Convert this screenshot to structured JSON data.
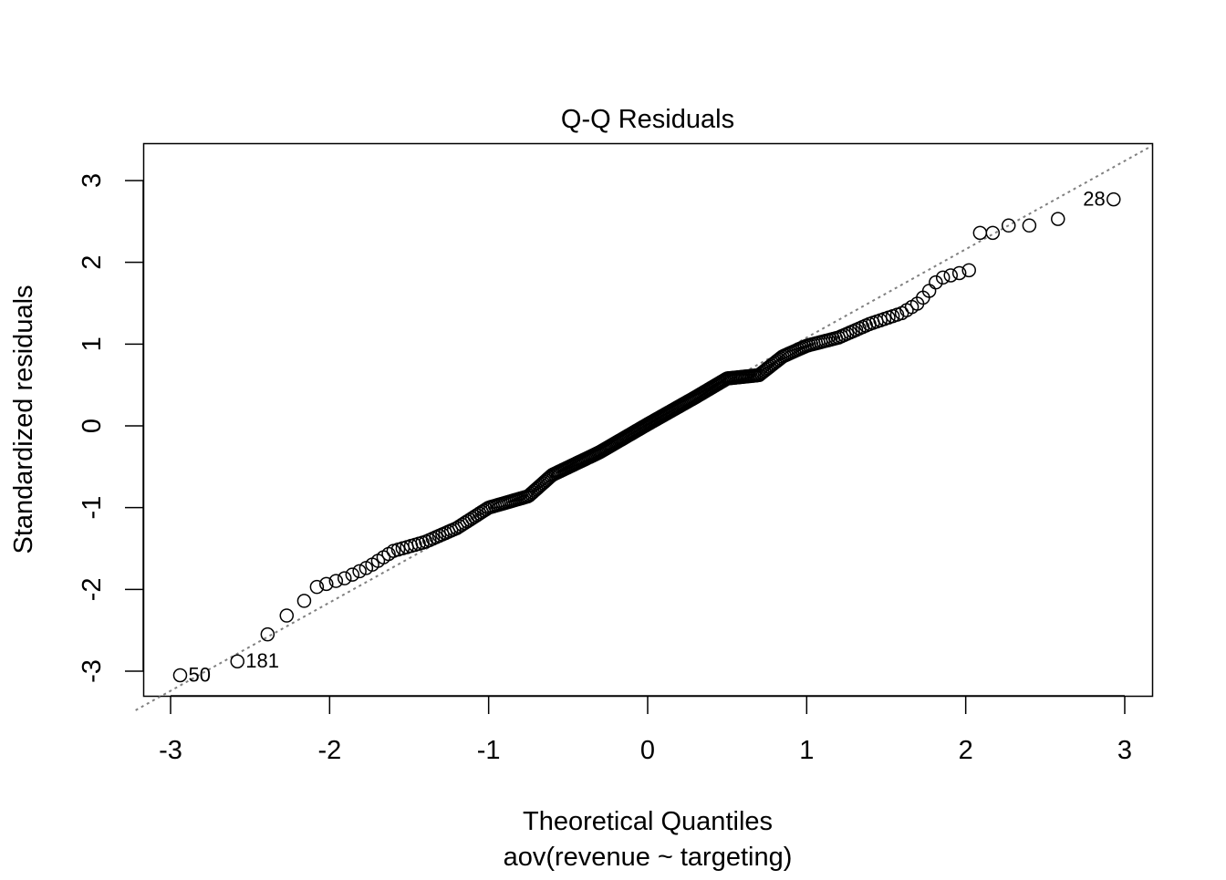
{
  "chart_data": {
    "type": "scatter",
    "title": "Q-Q Residuals",
    "xlabel": "Theoretical Quantiles",
    "xsublabel": "aov(revenue ~ targeting)",
    "ylabel": "Standardized residuals",
    "xlim": [
      -3.17,
      3.17
    ],
    "ylim": [
      -3.3,
      3.46
    ],
    "xticks": [
      -3,
      -2,
      -1,
      0,
      1,
      2,
      3
    ],
    "xtick_labels": [
      "-3",
      "-2",
      "-1",
      "0",
      "1",
      "2",
      "3"
    ],
    "yticks": [
      -3,
      -2,
      -1,
      0,
      1,
      2,
      3
    ],
    "ytick_labels": [
      "-3",
      "-2",
      "-1",
      "0",
      "1",
      "2",
      "3"
    ],
    "n": 300,
    "residual_curve": [
      [
        -2.94,
        -3.05
      ],
      [
        -2.58,
        -2.88
      ],
      [
        -2.39,
        -2.55
      ],
      [
        -2.27,
        -2.32
      ],
      [
        -2.16,
        -2.14
      ],
      [
        -2.08,
        -1.97
      ],
      [
        -1.9,
        -1.86
      ],
      [
        -1.75,
        -1.72
      ],
      [
        -1.6,
        -1.53
      ],
      [
        -1.4,
        -1.42
      ],
      [
        -1.2,
        -1.25
      ],
      [
        -1.0,
        -1.0
      ],
      [
        -0.75,
        -0.86
      ],
      [
        -0.6,
        -0.6
      ],
      [
        -0.3,
        -0.32
      ],
      [
        0,
        0.02
      ],
      [
        0.3,
        0.35
      ],
      [
        0.5,
        0.58
      ],
      [
        0.7,
        0.62
      ],
      [
        0.85,
        0.85
      ],
      [
        1.0,
        0.98
      ],
      [
        1.2,
        1.08
      ],
      [
        1.4,
        1.25
      ],
      [
        1.6,
        1.38
      ],
      [
        1.7,
        1.5
      ],
      [
        1.77,
        1.65
      ],
      [
        1.83,
        1.8
      ],
      [
        2.02,
        1.9
      ],
      [
        2.09,
        2.36
      ],
      [
        2.17,
        2.36
      ],
      [
        2.27,
        2.45
      ],
      [
        2.4,
        2.45
      ],
      [
        2.58,
        2.53
      ],
      [
        2.93,
        2.77
      ]
    ],
    "reference_line": {
      "intercept": 0,
      "slope": 1.08,
      "style": "dotted",
      "color": "#808080"
    },
    "labeled_points": [
      {
        "label": "50",
        "x": -2.94,
        "y": -3.05
      },
      {
        "label": "181",
        "x": -2.58,
        "y": -2.88
      },
      {
        "label": "28",
        "x": 2.93,
        "y": 2.77
      }
    ]
  }
}
